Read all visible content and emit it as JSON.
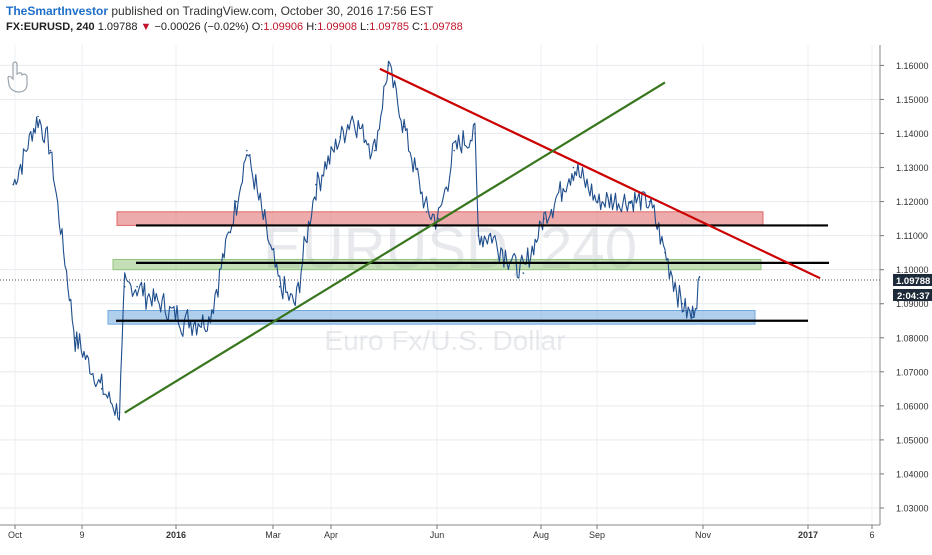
{
  "header": {
    "author": "TheSmartInvestor",
    "published_text": "published on TradingView.com, October 30, 2016 17:56 EST",
    "symbol": "FX:EURUSD, 240",
    "last": "1.09788",
    "change_icon": "down-triangle-icon",
    "change": "−0.00026 (−0.02%)",
    "o_label": "O:",
    "o_value": "1.09906",
    "h_label": "H:",
    "h_value": "1.09908",
    "l_label": "L:",
    "l_value": "1.09785",
    "c_label": "C:",
    "c_value": "1.09788"
  },
  "watermark": {
    "symbol": "EURUSD, 240",
    "description": "Euro Fx/U.S. Dollar"
  },
  "price_tag": {
    "price": "1.09788",
    "countdown": "2:04:37"
  },
  "colors": {
    "candles": "#1f4e8c",
    "red_zone": "#e06666",
    "green_zone": "#93c47d",
    "blue_zone": "#6fa8dc",
    "red_trendline": "#cc0000",
    "green_trendline": "#38761d",
    "level_line": "#000000",
    "price_tag": "#1d2a3a"
  },
  "chart_data": {
    "type": "line",
    "title": "FX:EURUSD, 240",
    "ylim": [
      1.025,
      1.166
    ],
    "y_ticks": [
      "1.03000",
      "1.04000",
      "1.05000",
      "1.06000",
      "1.07000",
      "1.08000",
      "1.09000",
      "1.10000",
      "1.11000",
      "1.12000",
      "1.13000",
      "1.14000",
      "1.15000",
      "1.16000"
    ],
    "x_ticks": [
      "Oct",
      "9",
      "2016",
      "Mar",
      "Apr",
      "Jun",
      "Aug",
      "Sep",
      "Nov",
      "2017",
      "6"
    ],
    "x": [
      "2015-10-01",
      "2015-10-15",
      "2015-10-22",
      "2015-11-05",
      "2015-11-20",
      "2015-11-30",
      "2015-12-03",
      "2015-12-10",
      "2016-01-05",
      "2016-01-20",
      "2016-02-05",
      "2016-02-11",
      "2016-03-01",
      "2016-03-10",
      "2016-03-22",
      "2016-04-05",
      "2016-04-12",
      "2016-04-25",
      "2016-05-03",
      "2016-05-12",
      "2016-05-25",
      "2016-06-01",
      "2016-06-10",
      "2016-06-22",
      "2016-06-24",
      "2016-07-01",
      "2016-07-20",
      "2016-08-01",
      "2016-08-18",
      "2016-09-01",
      "2016-09-20",
      "2016-10-01",
      "2016-10-10",
      "2016-10-20",
      "2016-10-26",
      "2016-10-30"
    ],
    "series": [
      {
        "values": [
          1.125,
          1.145,
          1.135,
          1.08,
          1.065,
          1.058,
          1.095,
          1.095,
          1.085,
          1.085,
          1.12,
          1.135,
          1.095,
          1.09,
          1.125,
          1.139,
          1.145,
          1.135,
          1.16,
          1.142,
          1.117,
          1.115,
          1.135,
          1.14,
          1.11,
          1.11,
          1.099,
          1.115,
          1.13,
          1.12,
          1.12,
          1.12,
          1.105,
          1.09,
          1.086,
          1.0979
        ]
      }
    ],
    "zones": [
      {
        "color": "red",
        "low": 1.113,
        "high": 1.117
      },
      {
        "color": "green",
        "low": 1.1,
        "high": 1.103
      },
      {
        "color": "blue",
        "low": 1.084,
        "high": 1.088
      }
    ],
    "level_lines": [
      1.113,
      1.102,
      1.085
    ],
    "trendlines": [
      {
        "color": "red",
        "from": [
          "2016-04-28",
          1.159
        ],
        "to": [
          "2017-01-08",
          1.0975
        ]
      },
      {
        "color": "green",
        "from": [
          "2015-12-03",
          1.058
        ],
        "to": [
          "2016-10-10",
          1.155
        ]
      }
    ],
    "grid": true
  }
}
